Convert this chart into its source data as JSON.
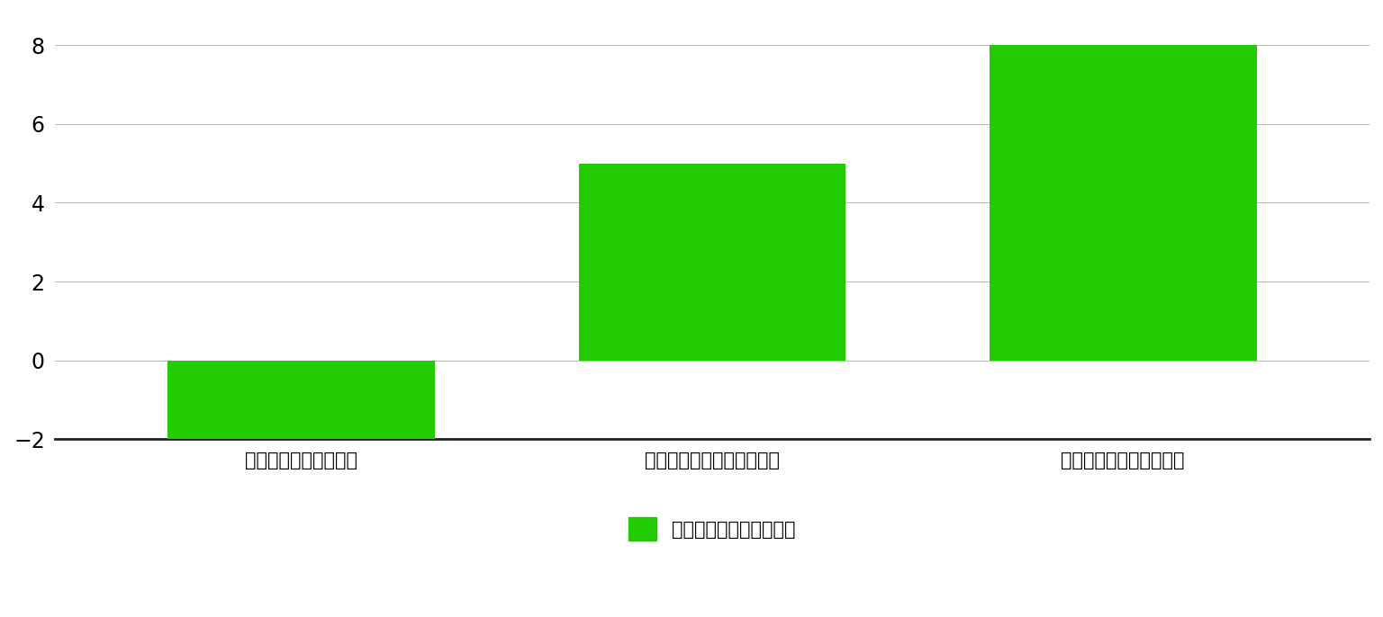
{
  "categories": [
    "ユーグレナエキス単体",
    "調合香料（エキス未配合）",
    "調合香料（エキス配合）"
  ],
  "values": [
    -2.0,
    5.0,
    8.0
  ],
  "bar_color": "#22CC00",
  "bar_width": 0.65,
  "ylim": [
    -2.5,
    8.8
  ],
  "yticks": [
    -2,
    0,
    2,
    4,
    6,
    8
  ],
  "legend_label": "嗜好性（快適度レベル）",
  "background_color": "#ffffff",
  "grid_color": "#bbbbbb",
  "tick_fontsize": 17,
  "label_fontsize": 15,
  "legend_fontsize": 15
}
